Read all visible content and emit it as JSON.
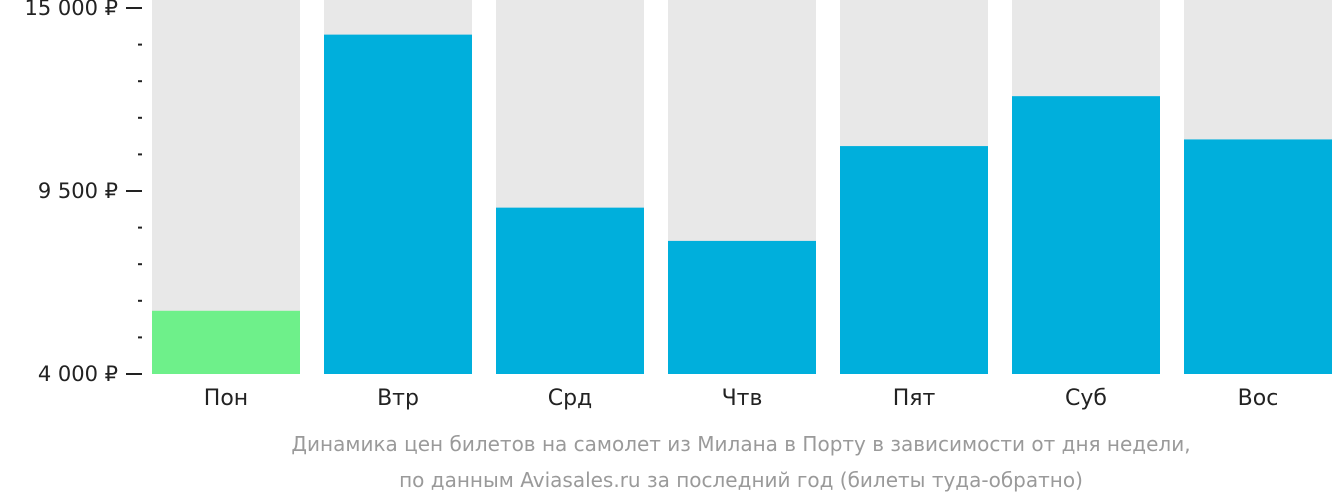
{
  "colors": {
    "track": "#e8e8e8",
    "bar": "#00afdc",
    "highlight": "#6ef08a",
    "axis": "#222222",
    "caption": "#9a9a9a"
  },
  "chart_data": {
    "type": "bar",
    "categories": [
      "Пон",
      "Втр",
      "Срд",
      "Чтв",
      "Пят",
      "Суб",
      "Вос"
    ],
    "values": [
      5900,
      14200,
      9000,
      8000,
      10850,
      12350,
      11050
    ],
    "highlight_index": 0,
    "ylim": [
      4000,
      15000
    ],
    "y_ticks": [
      {
        "value": 15000,
        "label": "15 000 ₽"
      },
      {
        "value": 9500,
        "label": "9 500 ₽"
      },
      {
        "value": 4000,
        "label": "4 000 ₽"
      }
    ],
    "y_minor_ticks": [
      4000,
      5100,
      6200,
      7300,
      8400,
      9500,
      10600,
      11700,
      12800,
      13900,
      15000
    ]
  },
  "caption": {
    "line1": "Динамика цен билетов на самолет из Милана в Порту в зависимости от дня недели,",
    "line2": "по данным Aviasales.ru за последний год (билеты туда-обратно)"
  }
}
